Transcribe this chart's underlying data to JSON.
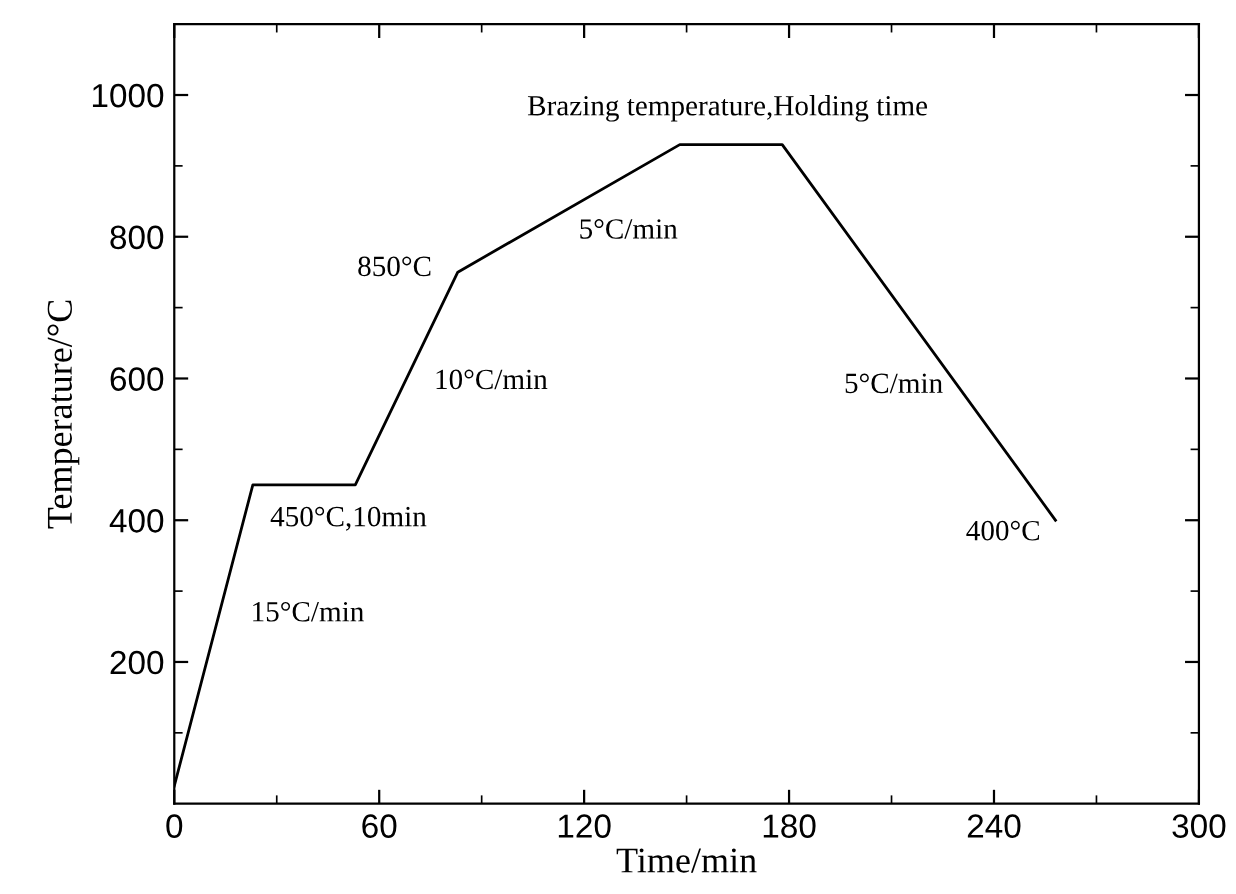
{
  "chart_data": {
    "type": "line",
    "xlabel": "Time/min",
    "ylabel": "Temperature/°C",
    "x": [
      0,
      23,
      53,
      83,
      148,
      178,
      258
    ],
    "series": [
      {
        "color": "#000000",
        "values": [
          25,
          450,
          450,
          750,
          930,
          930,
          400
        ]
      }
    ],
    "xlim": [
      0,
      300
    ],
    "xticks": [
      0,
      60,
      120,
      180,
      240,
      300
    ],
    "ylim": [
      0,
      1100
    ],
    "yticks": [
      200,
      400,
      600,
      800,
      1000
    ],
    "grid": false,
    "marker": "none",
    "line_style": "solid",
    "annotations": [
      "Brazing temperature,Holding time",
      "5°C/min",
      "850°C",
      "10°C/min",
      "5°C/min",
      "450°C,10min",
      "15°C/min",
      "400°C"
    ]
  }
}
